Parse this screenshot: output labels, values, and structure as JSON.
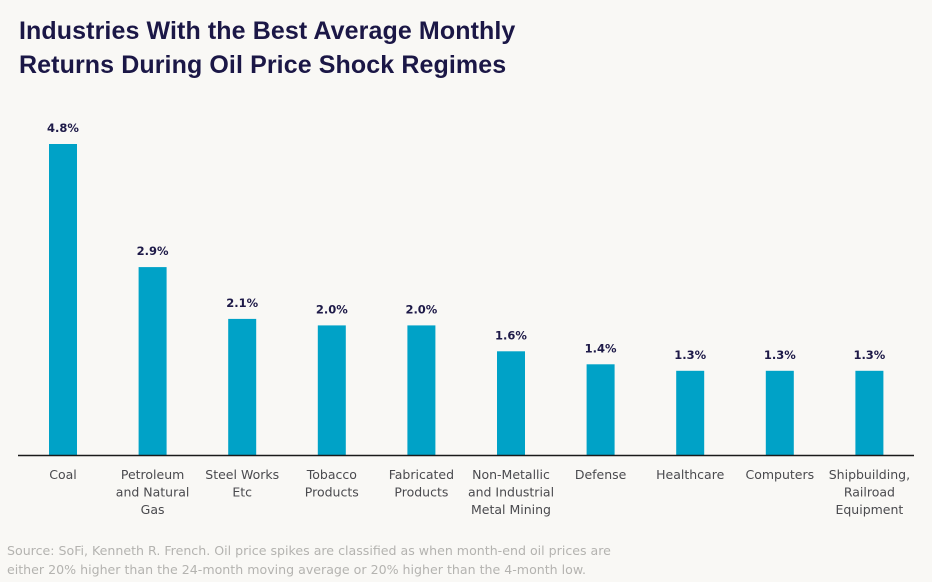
{
  "chart_data": {
    "type": "bar",
    "title": "Industries With the Best Average Monthly Returns During Oil Price Shock Regimes",
    "title_lines": [
      "Industries With the Best Average Monthly",
      "Returns During Oil Price Shock Regimes"
    ],
    "xlabel": "",
    "ylabel": "",
    "ylim": [
      0,
      4.8
    ],
    "grid": false,
    "legend": "none",
    "value_suffix": "%",
    "bar_color": "#00a2c7",
    "axis_color": "#1a1a1a",
    "categories": [
      "Coal",
      "Petroleum and Natural Gas",
      "Steel Works Etc",
      "Tobacco Products",
      "Fabricated Products",
      "Non-Metallic and Industrial Metal Mining",
      "Defense",
      "Healthcare",
      "Computers",
      "Shipbuilding, Railroad Equipment"
    ],
    "category_label_lines": [
      [
        "Coal"
      ],
      [
        "Petroleum",
        "and Natural",
        "Gas"
      ],
      [
        "Steel Works",
        "Etc"
      ],
      [
        "Tobacco",
        "Products"
      ],
      [
        "Fabricated",
        "Products"
      ],
      [
        "Non-Metallic",
        "and Industrial",
        "Metal Mining"
      ],
      [
        "Defense"
      ],
      [
        "Healthcare"
      ],
      [
        "Computers"
      ],
      [
        "Shipbuilding,",
        "Railroad",
        "Equipment"
      ]
    ],
    "values": [
      4.8,
      2.9,
      2.1,
      2.0,
      2.0,
      1.6,
      1.4,
      1.3,
      1.3,
      1.3
    ],
    "value_labels": [
      "4.8%",
      "2.9%",
      "2.1%",
      "2.0%",
      "2.0%",
      "1.6%",
      "1.4%",
      "1.3%",
      "1.3%",
      "1.3%"
    ]
  },
  "source_lines": [
    "Source: SoFi, Kenneth R. French. Oil price spikes are classified as when month-end oil prices are",
    "either 20% higher than the 24-month moving average or 20% higher than the 4-month low."
  ]
}
